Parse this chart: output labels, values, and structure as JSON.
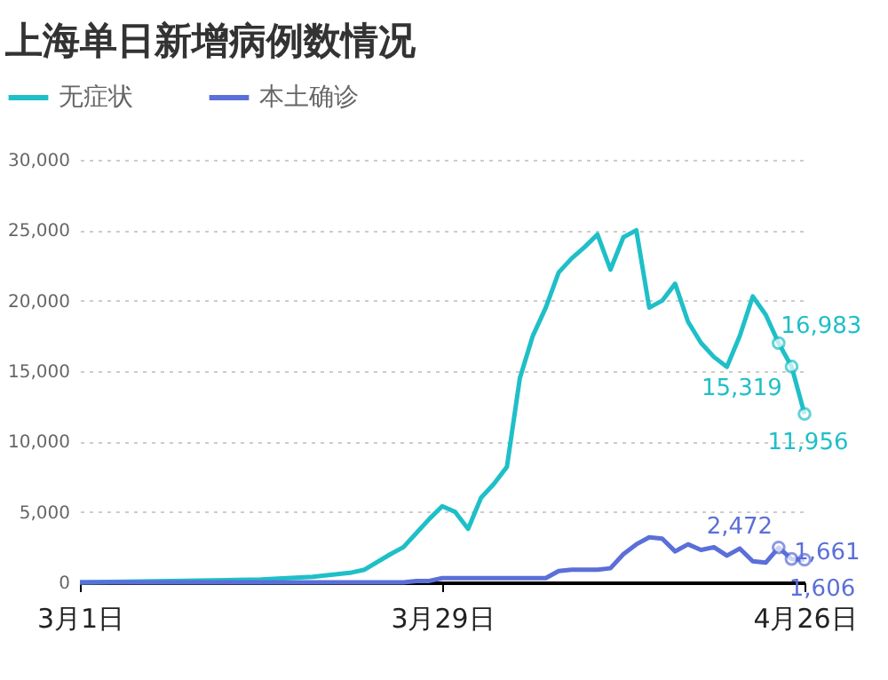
{
  "chart_data": {
    "type": "line",
    "title": "上海单日新增病例数情况",
    "x": [
      "--03-01",
      "--03-08",
      "--03-15",
      "--03-19",
      "--03-22",
      "--03-23",
      "--03-25",
      "--03-26",
      "--03-27",
      "--03-28",
      "--03-29",
      "--03-30",
      "--03-31",
      "--04-01",
      "--04-02",
      "--04-03",
      "--04-04",
      "--04-05",
      "--04-06",
      "--04-07",
      "--04-08",
      "--04-09",
      "--04-10",
      "--04-11",
      "--04-12",
      "--04-13",
      "--04-14",
      "--04-15",
      "--04-16",
      "--04-17",
      "--04-18",
      "--04-19",
      "--04-20",
      "--04-21",
      "--04-22",
      "--04-23",
      "--04-24",
      "--04-25",
      "--04-26"
    ],
    "series": [
      {
        "name": "无症状",
        "color": "#1fbfc8",
        "values": [
          0,
          100,
          200,
          400,
          700,
          900,
          2000,
          2500,
          3500,
          4500,
          5400,
          5000,
          3800,
          6000,
          7000,
          8200,
          14500,
          17500,
          19500,
          22000,
          23000,
          23800,
          24700,
          22200,
          24500,
          25000,
          19500,
          20000,
          21200,
          18500,
          17000,
          16000,
          15300,
          17500,
          20300,
          19000,
          16983,
          15319,
          11956
        ],
        "value_labels": [
          null,
          null,
          null,
          null,
          null,
          null,
          null,
          null,
          null,
          null,
          null,
          null,
          null,
          null,
          null,
          null,
          null,
          null,
          null,
          null,
          null,
          null,
          null,
          null,
          null,
          null,
          null,
          null,
          null,
          null,
          null,
          null,
          null,
          null,
          null,
          null,
          "16,983",
          "15,319",
          "11,956"
        ]
      },
      {
        "name": "本土确诊",
        "color": "#5a6fd8",
        "values": [
          0,
          0,
          0,
          0,
          0,
          0,
          0,
          0,
          100,
          100,
          300,
          300,
          300,
          300,
          300,
          300,
          300,
          300,
          300,
          800,
          900,
          900,
          900,
          1000,
          2000,
          2700,
          3200,
          3100,
          2200,
          2700,
          2300,
          2500,
          1900,
          2400,
          1500,
          1400,
          2472,
          1661,
          1606
        ],
        "value_labels": [
          null,
          null,
          null,
          null,
          null,
          null,
          null,
          null,
          null,
          null,
          null,
          null,
          null,
          null,
          null,
          null,
          null,
          null,
          null,
          null,
          null,
          null,
          null,
          null,
          null,
          null,
          null,
          null,
          null,
          null,
          null,
          null,
          null,
          null,
          null,
          null,
          "2,472",
          "1,661",
          "1,606"
        ]
      }
    ],
    "xlim": [
      "--03-01",
      "--04-26"
    ],
    "xticks": [
      {
        "value": "--03-01",
        "label": "3月1日"
      },
      {
        "value": "--03-29",
        "label": "3月29日"
      },
      {
        "value": "--04-26",
        "label": "4月26日"
      }
    ],
    "ylim": [
      0,
      30000
    ],
    "yticks": [
      0,
      {
        "value": 5000,
        "label": "5,000"
      },
      {
        "value": 10000,
        "label": "10,000"
      },
      {
        "value": 15000,
        "label": "15,000"
      },
      {
        "value": 20000,
        "label": "20,000"
      },
      {
        "value": 25000,
        "label": "25,000"
      },
      {
        "value": 30000,
        "label": "30,000"
      }
    ],
    "grid": "y",
    "legend": "top left"
  }
}
